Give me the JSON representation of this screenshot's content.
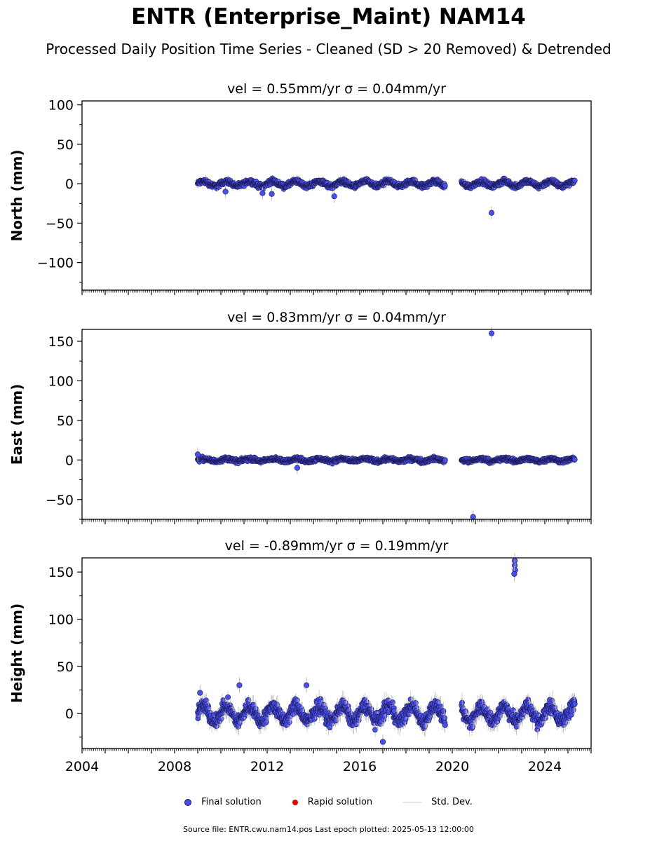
{
  "title": "ENTR (Enterprise_Maint) NAM14",
  "subtitle": "Processed Daily Position Time Series - Cleaned (SD > 20 Removed) & Detrended",
  "legend": [
    {
      "label": "Final solution",
      "color": "#4a4ef0",
      "kind": "dot"
    },
    {
      "label": "Rapid solution",
      "color": "#e00000",
      "kind": "dot"
    },
    {
      "label": "Std. Dev.",
      "color": "#c8c8c8",
      "kind": "line"
    }
  ],
  "footer": "Source file: ENTR.cwu.nam14.pos  Last epoch plotted: 2025-05-13 12:00:00",
  "chart_data": [
    {
      "type": "scatter",
      "title": "vel = 0.55mm/yr   σ = 0.04mm/yr",
      "ylabel": "North (mm)",
      "xlim": [
        2004.0,
        2026.0
      ],
      "ylim": [
        -135,
        105
      ],
      "yticks": [
        100,
        50,
        0,
        -50,
        -100
      ],
      "ytick_labels": [
        "100",
        "50",
        "0",
        "−50",
        "−100"
      ],
      "show_xtick_labels": false,
      "series": [
        {
          "name": "Final solution",
          "color": "#4a4ef0",
          "clusters": [
            {
              "start": 2009.0,
              "end": 2019.7,
              "amplitude": 3,
              "noise": 2.5,
              "period": 1.0
            },
            {
              "start": 2020.4,
              "end": 2025.3,
              "amplitude": 3,
              "noise": 2.5,
              "period": 1.0
            }
          ],
          "outliers": [
            [
              2011.8,
              -12
            ],
            [
              2014.9,
              -16
            ],
            [
              2021.7,
              -37
            ],
            [
              2010.2,
              -10
            ],
            [
              2012.2,
              -13
            ]
          ]
        }
      ]
    },
    {
      "type": "scatter",
      "title": "vel = 0.83mm/yr   σ = 0.04mm/yr",
      "ylabel": "East (mm)",
      "xlim": [
        2004.0,
        2026.0
      ],
      "ylim": [
        -75,
        165
      ],
      "yticks": [
        150,
        100,
        50,
        0,
        -50
      ],
      "ytick_labels": [
        "150",
        "100",
        "50",
        "0",
        "−50"
      ],
      "show_xtick_labels": false,
      "series": [
        {
          "name": "Final solution",
          "color": "#4a4ef0",
          "clusters": [
            {
              "start": 2009.0,
              "end": 2019.7,
              "amplitude": 1.5,
              "noise": 2,
              "period": 1.0
            },
            {
              "start": 2020.4,
              "end": 2025.3,
              "amplitude": 1.5,
              "noise": 2,
              "period": 1.0
            }
          ],
          "outliers": [
            [
              2021.7,
              160
            ],
            [
              2020.9,
              -72
            ],
            [
              2009.0,
              7
            ],
            [
              2013.3,
              -10
            ]
          ]
        }
      ]
    },
    {
      "type": "scatter",
      "title": "vel = -0.89mm/yr   σ = 0.19mm/yr",
      "ylabel": "Height (mm)",
      "xlim": [
        2004.0,
        2026.0
      ],
      "ylim": [
        -37,
        165
      ],
      "yticks": [
        150,
        100,
        50,
        0
      ],
      "ytick_labels": [
        "150",
        "100",
        "50",
        "0"
      ],
      "show_xtick_labels": true,
      "xticks": [
        2004,
        2008,
        2012,
        2016,
        2020,
        2024
      ],
      "xtick_labels": [
        "2004",
        "2008",
        "2012",
        "2016",
        "2020",
        "2024"
      ],
      "series": [
        {
          "name": "Final solution",
          "color": "#4a4ef0",
          "clusters": [
            {
              "start": 2009.0,
              "end": 2019.7,
              "amplitude": 8,
              "noise": 6,
              "period": 1.0
            },
            {
              "start": 2020.4,
              "end": 2025.3,
              "amplitude": 8,
              "noise": 6,
              "period": 1.0
            }
          ],
          "outliers": [
            [
              2022.7,
              162
            ],
            [
              2022.7,
              157
            ],
            [
              2022.72,
              152
            ],
            [
              2022.68,
              148
            ],
            [
              2017.0,
              -30
            ],
            [
              2009.1,
              22
            ],
            [
              2010.8,
              30
            ],
            [
              2013.7,
              30
            ]
          ]
        }
      ]
    }
  ]
}
